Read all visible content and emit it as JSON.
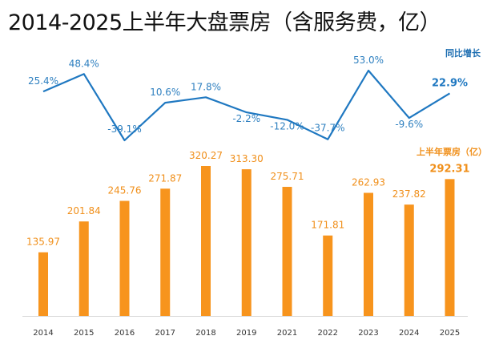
{
  "title": "2014-2025上半年大盘票房（含服务费，亿）",
  "chart_data": {
    "type": "bar+line",
    "title": "2014-2025上半年大盘票房（含服务费，亿）",
    "categories": [
      "2014",
      "2015",
      "2016",
      "2017",
      "2018",
      "2019",
      "2021",
      "2022",
      "2023",
      "2024",
      "2025"
    ],
    "series": [
      {
        "name": "上半年票房（亿）",
        "type": "bar",
        "color": "#f7941d",
        "values": [
          135.97,
          201.84,
          245.76,
          271.87,
          320.27,
          313.3,
          275.71,
          171.81,
          262.93,
          237.82,
          292.31
        ],
        "labels": [
          "135.97",
          "201.84",
          "245.76",
          "271.87",
          "320.27",
          "313.30",
          "275.71",
          "171.81",
          "262.93",
          "237.82",
          "292.31"
        ]
      },
      {
        "name": "同比增长",
        "type": "line",
        "color": "#1f78c1",
        "values": [
          25.4,
          48.4,
          -39.1,
          10.6,
          17.8,
          -2.2,
          -12.0,
          -37.7,
          53.0,
          -9.6,
          22.9
        ],
        "labels": [
          "25.4%",
          "48.4%",
          "-39.1%",
          "10.6%",
          "17.8%",
          "-2.2%",
          "-12.0%",
          "-37.7%",
          "53.0%",
          "-9.6%",
          "22.9%"
        ]
      }
    ],
    "bar_ylim": [
      0,
      330
    ],
    "line_ylim": [
      -40,
      55
    ],
    "grid": false,
    "legend": "inline-right"
  }
}
